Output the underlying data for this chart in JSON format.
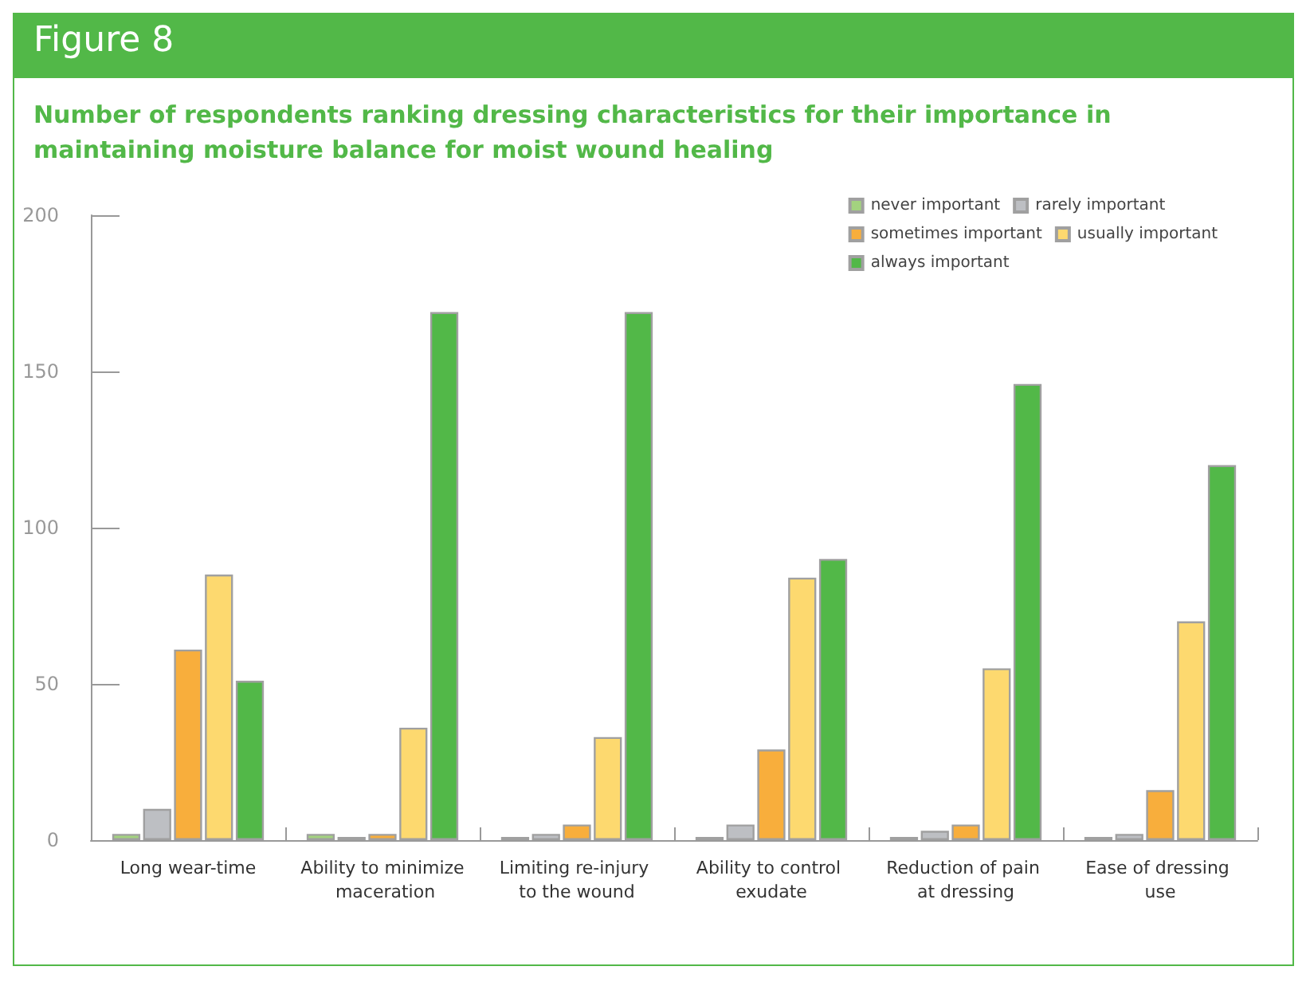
{
  "chart_data": {
    "type": "bar",
    "title": "Figure 8",
    "subtitle": "Number of respondents ranking dressing characteristics for their importance in maintaining moisture balance for moist wound healing",
    "categories": [
      "Long wear-time",
      "Ability to minimize maceration",
      "Limiting re-injury to the wound",
      "Ability to control exudate",
      "Reduction of pain at dressing",
      "Ease of dressing use"
    ],
    "series": [
      {
        "name": "never important",
        "color": "#a3d37f",
        "values": [
          2,
          2,
          1,
          1,
          1,
          1
        ]
      },
      {
        "name": "rarely important",
        "color": "#bdbfc3",
        "values": [
          10,
          1,
          2,
          5,
          3,
          2
        ]
      },
      {
        "name": "sometimes important",
        "color": "#f8ae3c",
        "values": [
          61,
          2,
          5,
          29,
          5,
          16
        ]
      },
      {
        "name": "usually important",
        "color": "#fdd96f",
        "values": [
          85,
          36,
          33,
          84,
          55,
          70
        ]
      },
      {
        "name": "always important",
        "color": "#52b848",
        "values": [
          51,
          169,
          169,
          90,
          146,
          120
        ]
      }
    ],
    "ylim": [
      0,
      200
    ],
    "yticks": [
      0,
      50,
      100,
      150,
      200
    ],
    "grid": false,
    "legend": "top right"
  }
}
